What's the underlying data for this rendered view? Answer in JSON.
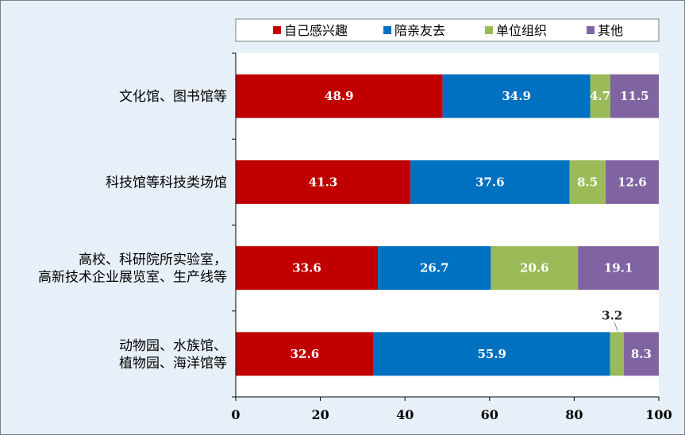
{
  "chart_data": {
    "type": "bar",
    "orientation": "horizontal",
    "stacked": true,
    "categories": [
      [
        "文化馆、图书馆等"
      ],
      [
        "科技馆等科技类场馆"
      ],
      [
        "高校、科研院所实验室，",
        "高新技术企业展览室、生产线等"
      ],
      [
        "动物园、水族馆、",
        "植物园、海洋馆等"
      ]
    ],
    "series": [
      {
        "name": "自己感兴趣",
        "color": "#c00000",
        "values": [
          48.9,
          41.3,
          33.6,
          32.6
        ]
      },
      {
        "name": "陪亲友去",
        "color": "#0070c0",
        "values": [
          34.9,
          37.6,
          26.7,
          55.9
        ]
      },
      {
        "name": "单位组织",
        "color": "#9bbb59",
        "values": [
          4.7,
          8.5,
          20.6,
          3.2
        ]
      },
      {
        "name": "其他",
        "color": "#8064a2",
        "values": [
          11.5,
          12.6,
          19.1,
          8.3
        ]
      }
    ],
    "xlim": [
      0,
      100
    ],
    "xticks": [
      "0",
      "20",
      "40",
      "60",
      "80",
      "100"
    ],
    "legend_position": "top",
    "grid": false,
    "title": "",
    "xlabel": "",
    "ylabel": ""
  }
}
